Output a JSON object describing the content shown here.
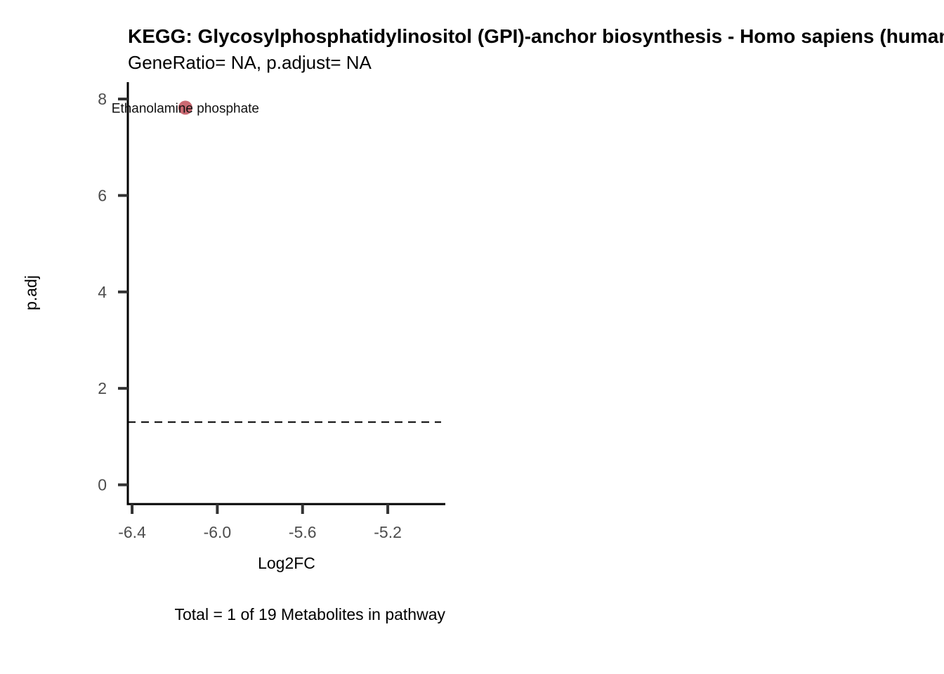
{
  "chart_data": {
    "type": "scatter",
    "title": "KEGG: Glycosylphosphatidylinositol (GPI)-anchor biosynthesis - Homo sapiens (human)",
    "subtitle": "GeneRatio= NA, p.adjust= NA",
    "xlabel": "Log2FC",
    "ylabel": "p.adj",
    "caption": "Total = 1 of 19 Metabolites in pathway",
    "xlim": [
      -6.42,
      -4.93
    ],
    "ylim": [
      -0.4,
      8.35
    ],
    "x_ticks": [
      -6.4,
      -6.0,
      -5.6,
      -5.2
    ],
    "x_tick_labels": [
      "-6.4",
      "-6.0",
      "-5.6",
      "-5.2"
    ],
    "y_ticks": [
      0,
      2,
      4,
      6,
      8
    ],
    "y_tick_labels": [
      "0",
      "2",
      "4",
      "6",
      "8"
    ],
    "threshold_line": {
      "y": 1.3,
      "style": "dashed"
    },
    "grid": false,
    "legend": "none",
    "point_color": "#c55a64",
    "points": [
      {
        "x": -6.15,
        "y": 7.82,
        "label": "Ethanolamine phosphate"
      }
    ]
  }
}
